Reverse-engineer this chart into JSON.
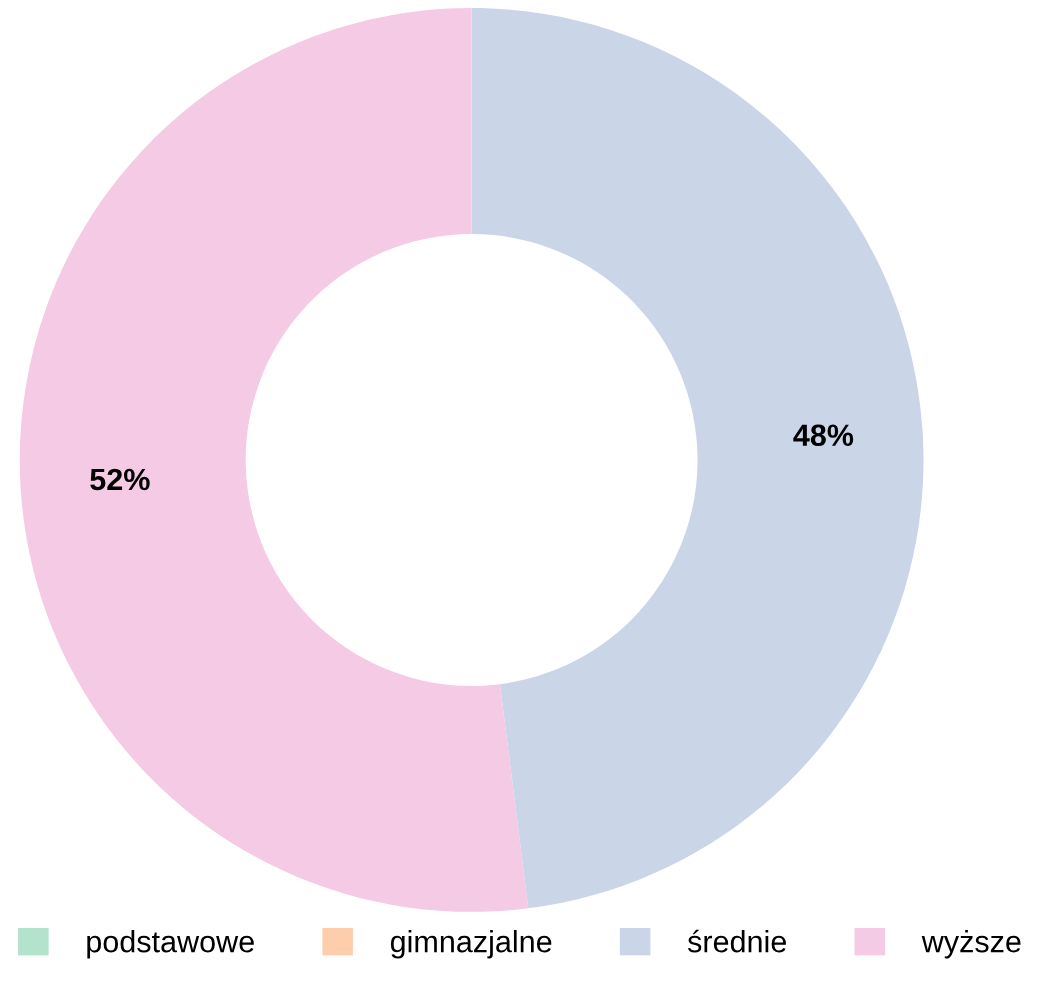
{
  "chart_data": {
    "type": "donut",
    "categories": [
      "podstawowe",
      "gimnazjalne",
      "średnie",
      "wyższe"
    ],
    "values": [
      0,
      0,
      48,
      52
    ],
    "colors": [
      "#b3e2cd",
      "#fdcdac",
      "#cbd5e8",
      "#f4cae4"
    ],
    "value_labels": [
      null,
      null,
      "48%",
      "52%"
    ],
    "legend": "bottom"
  }
}
